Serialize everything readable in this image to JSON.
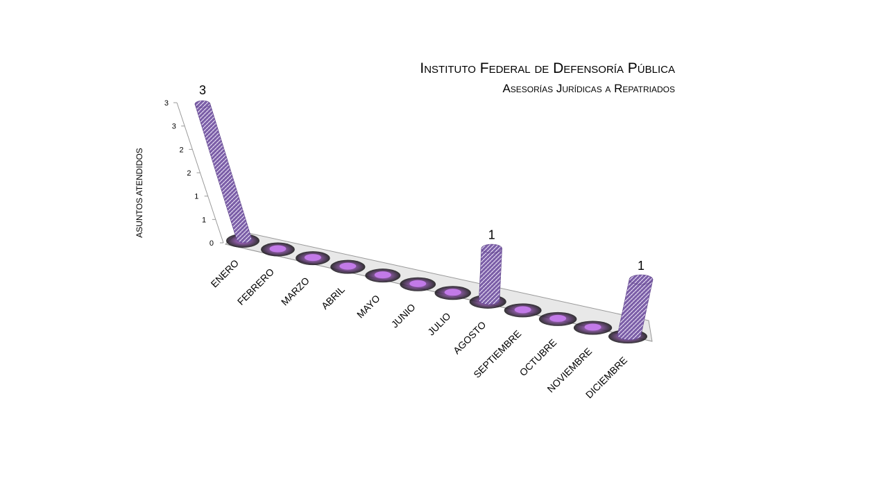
{
  "chart_data": {
    "type": "bar",
    "title": "Instituto Federal de Defensoría Pública",
    "subtitle": "Asesorías Jurídicas a Repatriados",
    "y_label": "ASUNTOS ATENDIDOS",
    "categories": [
      "ENERO",
      "FEBRERO",
      "MARZO",
      "ABRIL",
      "MAYO",
      "JUNIO",
      "JULIO",
      "AGOSTO",
      "SEPTIEMBRE",
      "OCTUBRE",
      "NOVIEMBRE",
      "DICIEMBRE"
    ],
    "values": [
      3,
      0,
      0,
      0,
      0,
      0,
      0,
      1,
      0,
      0,
      0,
      1
    ],
    "color": "#7b5ea7",
    "ylim": [
      0,
      3
    ],
    "yticks": [
      0,
      {
        "value": 0.5,
        "label": "1"
      },
      1,
      {
        "value": 1.5,
        "label": "2"
      },
      2,
      {
        "value": 2.5,
        "label": "3"
      },
      3
    ]
  }
}
